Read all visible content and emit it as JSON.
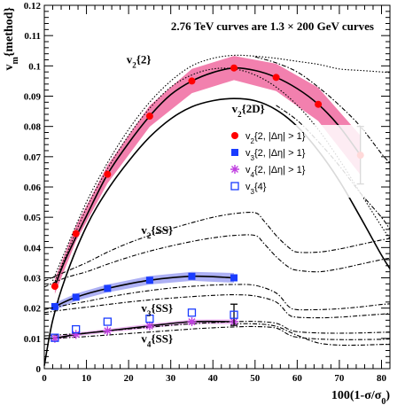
{
  "chart_data": {
    "type": "scatter",
    "xlim": [
      0,
      82
    ],
    "ylim": [
      0,
      0.12
    ],
    "x_ticks": [
      {
        "v": 0,
        "label": "0"
      },
      {
        "v": 10,
        "label": "10"
      },
      {
        "v": 20,
        "label": "20"
      },
      {
        "v": 30,
        "label": "30"
      },
      {
        "v": 40,
        "label": "40"
      },
      {
        "v": 50,
        "label": "50"
      },
      {
        "v": 60,
        "label": "60"
      },
      {
        "v": 70,
        "label": "70"
      },
      {
        "v": 80,
        "label": "80"
      }
    ],
    "y_ticks": [
      {
        "v": 0,
        "label": "0"
      },
      {
        "v": 0.01,
        "label": "0.01"
      },
      {
        "v": 0.02,
        "label": "0.02"
      },
      {
        "v": 0.03,
        "label": "0.03"
      },
      {
        "v": 0.04,
        "label": "0.04"
      },
      {
        "v": 0.05,
        "label": "0.05"
      },
      {
        "v": 0.06,
        "label": "0.06"
      },
      {
        "v": 0.07,
        "label": "0.07"
      },
      {
        "v": 0.08,
        "label": "0.08"
      },
      {
        "v": 0.09,
        "label": "0.09"
      },
      {
        "v": 0.1,
        "label": "0.1"
      },
      {
        "v": 0.11,
        "label": "0.11"
      },
      {
        "v": 0.12,
        "label": "0.12"
      }
    ],
    "xlabel": "100(1-σ/σ",
    "xlabel_sub": "0",
    "xlabel_end": ")",
    "ylabel_main": "v",
    "ylabel_sub": "m",
    "ylabel_rest": "{method}",
    "note": "2.76 TeV curves are 1.3 × 200 GeV curves",
    "curve_labels": [
      {
        "text": "v",
        "sub": "2",
        "rest": "{2}",
        "x": 19.5,
        "y": 0.1008
      },
      {
        "text": "v",
        "sub": "2",
        "rest": "{2D}",
        "x": 44.5,
        "y": 0.0846
      },
      {
        "text": "v",
        "sub": "2",
        "rest": "{SS}",
        "x": 23,
        "y": 0.0445
      },
      {
        "text": "v",
        "sub": "3",
        "rest": "{SS}",
        "x": 23,
        "y": 0.0187
      },
      {
        "text": "v",
        "sub": "4",
        "rest": "{SS}",
        "x": 23,
        "y": 0.0087
      }
    ],
    "legend": [
      {
        "symbol": "circle",
        "color": "#ff0000",
        "pre": "v",
        "sub": "2",
        "post": "{2, |Δη| > 1}"
      },
      {
        "symbol": "square",
        "color": "#1a3cff",
        "pre": "v",
        "sub": "3",
        "post": "{2, |Δη| > 1}"
      },
      {
        "symbol": "star",
        "color": "#c040e0",
        "pre": "v",
        "sub": "4",
        "post": "{2, |Δη| > 1}"
      },
      {
        "symbol": "open-square",
        "color": "#1a3cff",
        "pre": "v",
        "sub": "3",
        "post": "{4}"
      }
    ],
    "series": [
      {
        "name": "v2{2, |Δη| > 1}",
        "marker": "circle",
        "color": "#ff0000",
        "x": [
          2.5,
          7.5,
          15,
          25,
          35,
          45,
          55,
          65,
          75
        ],
        "y": [
          0.0272,
          0.0446,
          0.0642,
          0.0834,
          0.095,
          0.0993,
          0.0962,
          0.0873,
          0.0705
        ],
        "band": [
          0.0025,
          0.0025,
          0.003,
          0.0035,
          0.004,
          0.004,
          0.0045,
          0.0055,
          0.0065
        ],
        "errbar_index": 8,
        "errbar": 0.0095
      },
      {
        "name": "v3{2, |Δη| > 1}",
        "marker": "square",
        "color": "#1a3cff",
        "x": [
          2.5,
          7.5,
          15,
          25,
          35,
          45
        ],
        "y": [
          0.0205,
          0.0236,
          0.0265,
          0.0292,
          0.0305,
          0.03
        ],
        "band": [
          0.0012,
          0.0012,
          0.0013,
          0.0014,
          0.0015,
          0.0016
        ]
      },
      {
        "name": "v4{2, |Δη| > 1}",
        "marker": "star",
        "color": "#c040e0",
        "x": [
          2.5,
          7.5,
          15,
          25,
          35,
          45
        ],
        "y": [
          0.01,
          0.0113,
          0.0125,
          0.0141,
          0.0155,
          0.0155
        ],
        "band": [
          0.0006,
          0.0006,
          0.0006,
          0.0007,
          0.0007,
          0.0008
        ]
      },
      {
        "name": "v3{4}",
        "marker": "open-square",
        "color": "#1a3cff",
        "x": [
          2.5,
          7.5,
          15,
          25,
          35,
          45
        ],
        "y": [
          0.0102,
          0.013,
          0.0155,
          0.0165,
          0.0185,
          0.0178
        ],
        "errbar_index": 5,
        "errbar": 0.0035
      }
    ],
    "curves": [
      {
        "name": "v2{2D}",
        "style": "solid",
        "x": [
          0,
          2,
          5,
          10,
          15,
          20,
          25,
          30,
          35,
          40,
          45,
          50,
          55,
          60,
          65,
          70,
          75,
          80,
          82
        ],
        "y": [
          0.001,
          0.016,
          0.03,
          0.047,
          0.059,
          0.0685,
          0.0765,
          0.0825,
          0.0865,
          0.0885,
          0.0892,
          0.0885,
          0.0855,
          0.08,
          0.072,
          0.062,
          0.05,
          0.0375,
          0.033
        ]
      },
      {
        "name": "v2{2} fit",
        "style": "solid",
        "x": [
          2.5,
          5,
          10,
          15,
          20,
          25,
          30,
          35,
          40,
          45,
          50,
          55,
          60,
          65,
          70,
          75
        ],
        "y": [
          0.0272,
          0.036,
          0.0505,
          0.0642,
          0.0745,
          0.0834,
          0.0905,
          0.095,
          0.0978,
          0.0993,
          0.0985,
          0.0962,
          0.0925,
          0.0873,
          0.08,
          0.0705
        ]
      },
      {
        "name": "v3 fit",
        "style": "solid",
        "x": [
          2.5,
          7.5,
          15,
          25,
          35,
          45
        ],
        "y": [
          0.0205,
          0.0236,
          0.0265,
          0.0292,
          0.0305,
          0.03
        ]
      },
      {
        "name": "v4 fit",
        "style": "solid",
        "x": [
          2.5,
          7.5,
          15,
          25,
          35,
          45
        ],
        "y": [
          0.01,
          0.0113,
          0.0125,
          0.0141,
          0.0155,
          0.0155
        ]
      },
      {
        "name": "v2{2} 200GeV upper",
        "style": "dotted",
        "x": [
          2,
          5,
          10,
          15,
          20,
          25,
          30,
          35,
          40,
          45,
          50,
          55,
          60,
          65,
          70,
          75,
          80,
          82
        ],
        "y": [
          0.029,
          0.039,
          0.055,
          0.068,
          0.079,
          0.088,
          0.095,
          0.1,
          0.1025,
          0.1035,
          0.1032,
          0.1025,
          0.1015,
          0.1005,
          0.099,
          0.0985,
          0.098,
          0.0978
        ]
      },
      {
        "name": "v2{2} 200GeV lower",
        "style": "dotted",
        "x": [
          2,
          5,
          10,
          15,
          20,
          25,
          30,
          35,
          40,
          45,
          50,
          55,
          60,
          65,
          70,
          75,
          80,
          82
        ],
        "y": [
          0.027,
          0.037,
          0.053,
          0.066,
          0.077,
          0.086,
          0.093,
          0.097,
          0.099,
          0.099,
          0.097,
          0.093,
          0.087,
          0.079,
          0.069,
          0.058,
          0.047,
          0.043
        ]
      },
      {
        "name": "v2{2} band dashdot",
        "style": "dashdot",
        "x": [
          50,
          55,
          60,
          65,
          70,
          75,
          80,
          82
        ],
        "y": [
          0.103,
          0.101,
          0.098,
          0.093,
          0.087,
          0.08,
          0.071,
          0.068
        ]
      },
      {
        "name": "v2{2} lower dashdot",
        "style": "dashdot",
        "x": [
          55,
          60,
          65,
          70,
          75,
          80,
          82
        ],
        "y": [
          0.087,
          0.082,
          0.075,
          0.067,
          0.058,
          0.05,
          0.046
        ]
      },
      {
        "name": "v2{SS} upper",
        "style": "dashdot",
        "x": [
          0,
          5,
          10,
          15,
          20,
          25,
          30,
          35,
          40,
          45,
          50,
          52,
          55,
          58,
          60,
          65,
          70,
          75,
          80,
          82
        ],
        "y": [
          0.029,
          0.032,
          0.035,
          0.0385,
          0.0415,
          0.044,
          0.0462,
          0.0482,
          0.05,
          0.0512,
          0.0515,
          0.049,
          0.044,
          0.04,
          0.0385,
          0.0385,
          0.0395,
          0.041,
          0.0425,
          0.043
        ]
      },
      {
        "name": "v2{SS} lower",
        "style": "dashdot",
        "x": [
          0,
          5,
          10,
          15,
          20,
          25,
          30,
          35,
          40,
          45,
          50,
          52,
          55,
          58,
          60,
          65,
          70,
          75,
          80,
          82
        ],
        "y": [
          0.027,
          0.03,
          0.032,
          0.0345,
          0.0368,
          0.0388,
          0.0405,
          0.042,
          0.0432,
          0.044,
          0.044,
          0.0415,
          0.037,
          0.0335,
          0.0325,
          0.032,
          0.033,
          0.0345,
          0.036,
          0.0365
        ]
      },
      {
        "name": "v3{SS} upper",
        "style": "dashdot",
        "x": [
          0,
          5,
          10,
          15,
          20,
          25,
          30,
          35,
          40,
          45,
          50,
          55,
          58,
          60,
          65,
          70,
          75,
          80,
          82
        ],
        "y": [
          0.0195,
          0.021,
          0.0222,
          0.0236,
          0.0248,
          0.0258,
          0.0266,
          0.0272,
          0.0276,
          0.0278,
          0.0275,
          0.025,
          0.0205,
          0.0195,
          0.0195,
          0.0198,
          0.0204,
          0.0212,
          0.0214
        ]
      },
      {
        "name": "v3{SS} lower",
        "style": "dashdot",
        "x": [
          0,
          5,
          10,
          15,
          20,
          25,
          30,
          35,
          40,
          45,
          50,
          55,
          58,
          60,
          65,
          70,
          75,
          80,
          82
        ],
        "y": [
          0.0185,
          0.0195,
          0.0203,
          0.0212,
          0.022,
          0.0227,
          0.0233,
          0.0238,
          0.0242,
          0.0244,
          0.024,
          0.022,
          0.0178,
          0.017,
          0.0168,
          0.017,
          0.0175,
          0.018,
          0.0182
        ]
      },
      {
        "name": "v4{SS} upper",
        "style": "dashdot",
        "x": [
          0,
          5,
          10,
          15,
          20,
          25,
          30,
          35,
          40,
          45,
          50,
          55,
          58,
          60,
          65,
          70,
          75,
          80,
          82
        ],
        "y": [
          0.0108,
          0.0113,
          0.0118,
          0.0125,
          0.0131,
          0.0137,
          0.0143,
          0.0148,
          0.0152,
          0.0155,
          0.0156,
          0.015,
          0.013,
          0.0122,
          0.0118,
          0.0117,
          0.0118,
          0.012,
          0.0121
        ]
      },
      {
        "name": "v4{SS} lower",
        "style": "dashdot",
        "x": [
          0,
          5,
          10,
          15,
          20,
          25,
          30,
          35,
          40,
          45,
          50,
          55,
          58,
          60,
          65,
          70,
          75,
          80,
          82
        ],
        "y": [
          0.0098,
          0.0102,
          0.0106,
          0.0111,
          0.0116,
          0.0121,
          0.0126,
          0.0131,
          0.0135,
          0.0138,
          0.0139,
          0.0134,
          0.0112,
          0.0104,
          0.0098,
          0.0096,
          0.0096,
          0.0097,
          0.0098
        ]
      },
      {
        "name": "lower dashdot tail",
        "style": "dashdot",
        "x": [
          45,
          50,
          55,
          60,
          65,
          70,
          75,
          80,
          82
        ],
        "y": [
          0.0148,
          0.0148,
          0.014,
          0.011,
          0.0085,
          0.0078,
          0.0078,
          0.008,
          0.0081
        ]
      }
    ],
    "colors": {
      "v2_band": "#f06aa0",
      "v3_band": "#8a8ff0",
      "v4_band": "#e8a0f0"
    }
  }
}
